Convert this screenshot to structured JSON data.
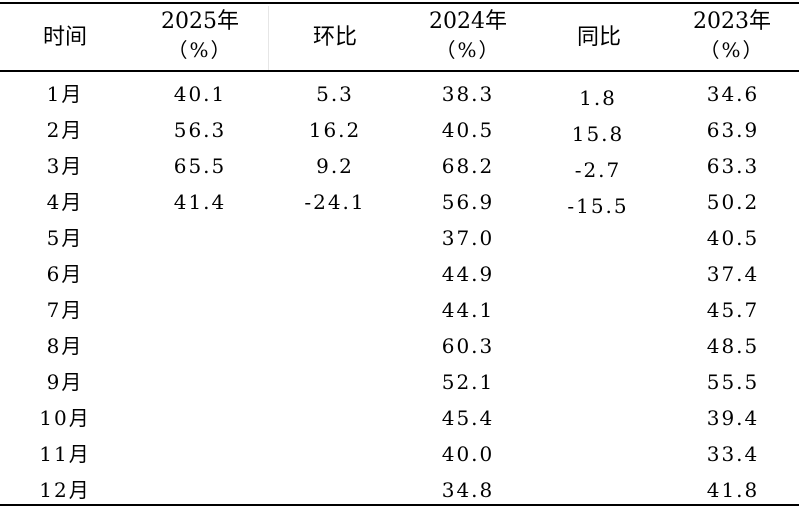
{
  "header": {
    "col_time": "时间",
    "col_2025_year": "2025年",
    "col_2025_unit": "（%）",
    "col_mom": "环比",
    "col_2024_year": "2024年",
    "col_2024_unit": "（%）",
    "col_yoy": "同比",
    "col_2023_year": "2023年",
    "col_2023_unit": "（%）"
  },
  "rows": [
    {
      "month": "1月",
      "v2025": "40.1",
      "mom": "5.3",
      "v2024": "38.3",
      "yoy": "1.8",
      "v2023": "34.6"
    },
    {
      "month": "2月",
      "v2025": "56.3",
      "mom": "16.2",
      "v2024": "40.5",
      "yoy": "15.8",
      "v2023": "63.9"
    },
    {
      "month": "3月",
      "v2025": "65.5",
      "mom": "9.2",
      "v2024": "68.2",
      "yoy": "-2.7",
      "v2023": "63.3"
    },
    {
      "month": "4月",
      "v2025": "41.4",
      "mom": "-24.1",
      "v2024": "56.9",
      "yoy": "-15.5",
      "v2023": "50.2"
    },
    {
      "month": "5月",
      "v2025": "",
      "mom": "",
      "v2024": "37.0",
      "yoy": "",
      "v2023": "40.5"
    },
    {
      "month": "6月",
      "v2025": "",
      "mom": "",
      "v2024": "44.9",
      "yoy": "",
      "v2023": "37.4"
    },
    {
      "month": "7月",
      "v2025": "",
      "mom": "",
      "v2024": "44.1",
      "yoy": "",
      "v2023": "45.7"
    },
    {
      "month": "8月",
      "v2025": "",
      "mom": "",
      "v2024": "60.3",
      "yoy": "",
      "v2023": "48.5"
    },
    {
      "month": "9月",
      "v2025": "",
      "mom": "",
      "v2024": "52.1",
      "yoy": "",
      "v2023": "55.5"
    },
    {
      "month": "10月",
      "v2025": "",
      "mom": "",
      "v2024": "45.4",
      "yoy": "",
      "v2023": "39.4"
    },
    {
      "month": "11月",
      "v2025": "",
      "mom": "",
      "v2024": "40.0",
      "yoy": "",
      "v2023": "33.4"
    },
    {
      "month": "12月",
      "v2025": "",
      "mom": "",
      "v2024": "34.8",
      "yoy": "",
      "v2023": "41.8"
    }
  ]
}
